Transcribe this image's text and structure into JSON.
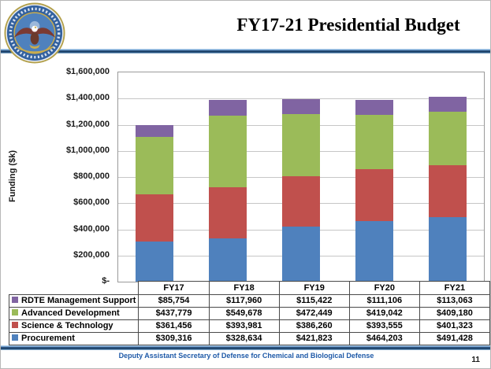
{
  "header": {
    "title": "FY17-21 Presidential Budget",
    "logo_name": "department-of-defense-seal"
  },
  "footer": {
    "text": "Deputy Assistant Secretary of Defense for Chemical and Biological Defense",
    "page_number": "11"
  },
  "colors": {
    "procurement": "#4F81BD",
    "science_technology": "#C0504D",
    "advanced_development": "#9BBB59",
    "rdte_management_support": "#8064A2",
    "rule_dark_blue": "#17365D",
    "footer_text_blue": "#1F5AA8",
    "gridline_gray": "#C6C6C6"
  },
  "chart_data": {
    "type": "bar",
    "stacked": true,
    "title": "FY17-21 Presidential Budget",
    "xlabel": "",
    "ylabel": "Funding ($k)",
    "ylim": [
      0,
      1600000
    ],
    "grid": true,
    "legend_position": "data-table-left",
    "y_ticks": [
      "$1,600,000",
      "$1,400,000",
      "$1,200,000",
      "$1,000,000",
      "$800,000",
      "$600,000",
      "$400,000",
      "$200,000",
      "$-"
    ],
    "categories": [
      "FY17",
      "FY18",
      "FY19",
      "FY20",
      "FY21"
    ],
    "series": [
      {
        "name": "Procurement",
        "color": "#4F81BD",
        "values": [
          309316,
          328634,
          421823,
          464203,
          491428
        ],
        "labels": [
          "$309,316",
          "$328,634",
          "$421,823",
          "$464,203",
          "$491,428"
        ]
      },
      {
        "name": "Science & Technology",
        "color": "#C0504D",
        "values": [
          361456,
          393981,
          386260,
          393555,
          401323
        ],
        "labels": [
          "$361,456",
          "$393,981",
          "$386,260",
          "$393,555",
          "$401,323"
        ]
      },
      {
        "name": "Advanced Development",
        "color": "#9BBB59",
        "values": [
          437779,
          549678,
          472449,
          419042,
          409180
        ],
        "labels": [
          "$437,779",
          "$549,678",
          "$472,449",
          "$419,042",
          "$409,180"
        ]
      },
      {
        "name": "RDTE Management Support",
        "color": "#8064A2",
        "values": [
          85754,
          117960,
          115422,
          111106,
          113063
        ],
        "labels": [
          "$85,754",
          "$117,960",
          "$115,422",
          "$111,106",
          "$113,063"
        ]
      }
    ],
    "stack_order_bottom_to_top": [
      "Procurement",
      "Science & Technology",
      "Advanced Development",
      "RDTE Management Support"
    ],
    "table_row_order_top_to_bottom": [
      "RDTE Management Support",
      "Advanced Development",
      "Science & Technology",
      "Procurement"
    ]
  }
}
